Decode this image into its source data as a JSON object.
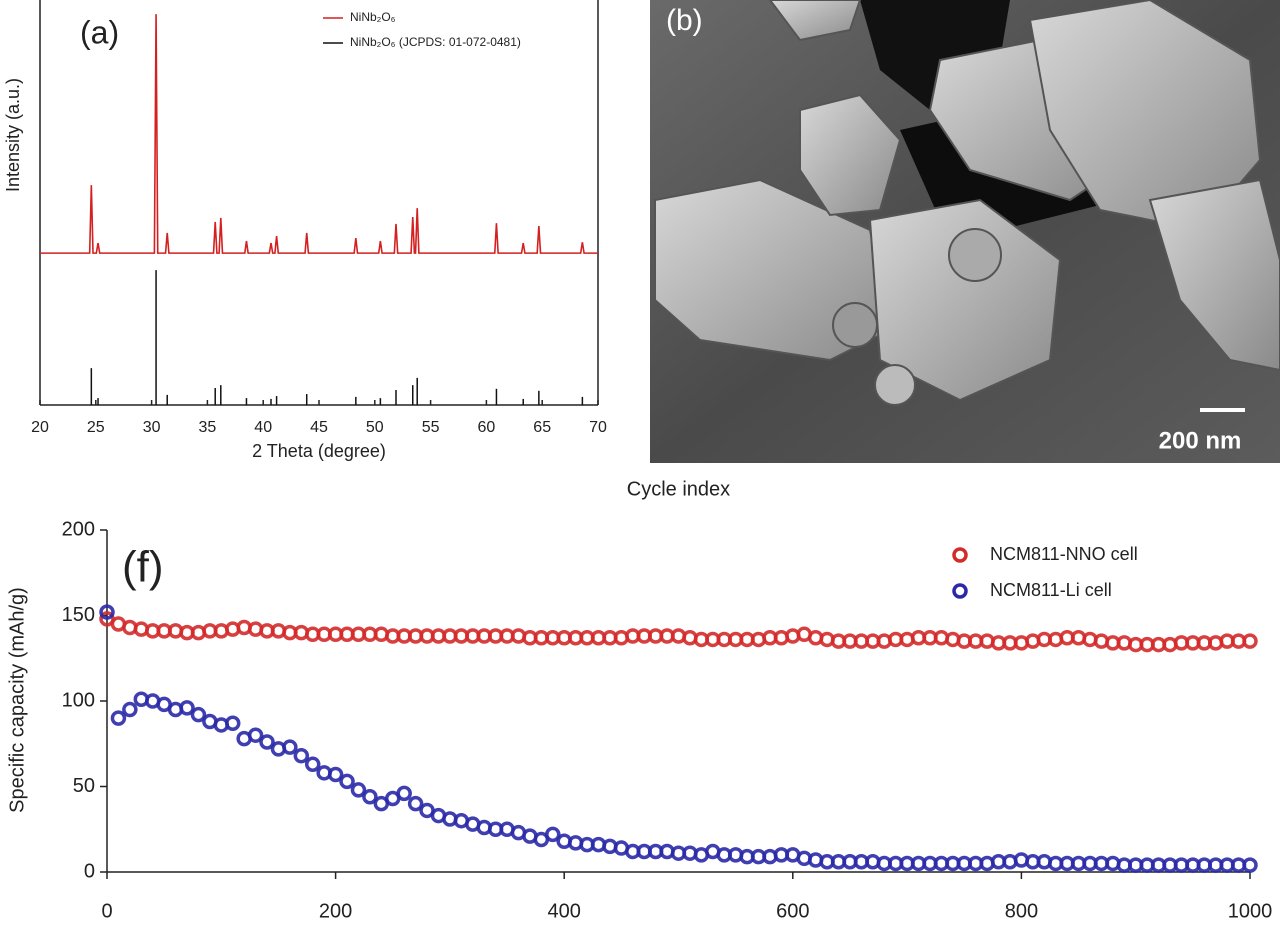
{
  "chart_data": [
    {
      "type": "line",
      "label": "(a)",
      "xlabel": "2 Theta (degree)",
      "ylabel": "Intensity (a.u.)",
      "xlim": [
        20,
        70
      ],
      "xticks": [
        20,
        25,
        30,
        35,
        40,
        45,
        50,
        55,
        60,
        65,
        70
      ],
      "ylim": [
        0,
        100
      ],
      "legend": "upper right",
      "series": [
        {
          "name": "NiNb₂O₆",
          "color": "#d42020",
          "style": "line",
          "x": [
            20,
            24.45,
            24.6,
            24.75,
            25.05,
            25.2,
            25.35,
            30.25,
            30.4,
            30.55,
            31.25,
            31.4,
            31.55,
            35.55,
            35.7,
            35.85,
            36.05,
            36.2,
            36.35,
            38.35,
            38.5,
            38.65,
            40.55,
            40.7,
            40.85,
            41.05,
            41.2,
            41.35,
            43.75,
            43.9,
            44.05,
            48.15,
            48.3,
            48.45,
            50.35,
            50.5,
            50.65,
            51.75,
            51.9,
            52.05,
            53.25,
            53.4,
            53.55,
            53.65,
            53.8,
            53.95,
            60.75,
            60.9,
            61.05,
            63.15,
            63.3,
            63.45,
            64.55,
            64.7,
            64.85,
            68.45,
            68.6,
            68.75,
            70
          ],
          "values": [
            37.5,
            37.5,
            54.3,
            37.5,
            37.5,
            40.0,
            37.5,
            37.5,
            96.5,
            37.5,
            37.5,
            42.5,
            37.5,
            37.5,
            45.2,
            37.5,
            37.5,
            46.2,
            37.5,
            37.5,
            40.5,
            37.5,
            37.5,
            40.0,
            37.5,
            37.5,
            41.7,
            37.5,
            37.5,
            42.5,
            37.5,
            37.5,
            41.2,
            37.5,
            37.5,
            40.5,
            37.5,
            37.5,
            44.7,
            37.5,
            37.5,
            46.4,
            37.5,
            37.5,
            48.6,
            37.5,
            37.5,
            44.9,
            37.5,
            37.5,
            40.0,
            37.5,
            37.5,
            44.2,
            37.5,
            37.5,
            40.2,
            37.5,
            37.5
          ]
        },
        {
          "name": "NiNb₂O₆ (JCPDS: 01-072-0481)",
          "color": "#111111",
          "style": "stick",
          "x": [
            24.6,
            25.2,
            30.4,
            31.4,
            35.7,
            36.2,
            38.5,
            40.7,
            41.2,
            43.9,
            48.3,
            50.5,
            51.9,
            53.4,
            53.8,
            60.9,
            63.3,
            64.7,
            68.6
          ],
          "values": [
            9.1,
            1.7,
            33.3,
            2.5,
            4.2,
            4.9,
            1.7,
            1.5,
            2.2,
            2.7,
            2.0,
            1.7,
            3.7,
            4.9,
            6.7,
            4.0,
            1.5,
            3.5,
            2.0
          ]
        }
      ]
    },
    {
      "type": "scatter",
      "label": "(f)",
      "xlabel": "Cycle index",
      "ylabel": "Specific capacity (mAh/g)",
      "xlim": [
        0,
        1000
      ],
      "xticks": [
        0,
        200,
        400,
        600,
        800,
        1000
      ],
      "ylim": [
        0,
        200
      ],
      "yticks": [
        0,
        50,
        100,
        150,
        200
      ],
      "legend": "upper right",
      "x": [
        0,
        10,
        20,
        30,
        40,
        50,
        60,
        70,
        80,
        90,
        100,
        110,
        120,
        130,
        140,
        150,
        160,
        170,
        180,
        190,
        200,
        210,
        220,
        230,
        240,
        250,
        260,
        270,
        280,
        290,
        300,
        310,
        320,
        330,
        340,
        350,
        360,
        370,
        380,
        390,
        400,
        410,
        420,
        430,
        440,
        450,
        460,
        470,
        480,
        490,
        500,
        510,
        520,
        530,
        540,
        550,
        560,
        570,
        580,
        590,
        600,
        610,
        620,
        630,
        640,
        650,
        660,
        670,
        680,
        690,
        700,
        710,
        720,
        730,
        740,
        750,
        760,
        770,
        780,
        790,
        800,
        810,
        820,
        830,
        840,
        850,
        860,
        870,
        880,
        890,
        900,
        910,
        920,
        930,
        940,
        950,
        960,
        970,
        980,
        990,
        1000
      ],
      "series": [
        {
          "name": "NCM811-NNO cell",
          "color": "#d42a2a",
          "values": [
            148,
            145,
            143,
            142,
            141,
            141,
            141,
            140,
            140,
            141,
            141,
            142,
            143,
            142,
            141,
            141,
            140,
            140,
            139,
            139,
            139,
            139,
            139,
            139,
            139,
            138,
            138,
            138,
            138,
            138,
            138,
            138,
            138,
            138,
            138,
            138,
            138,
            137,
            137,
            137,
            137,
            137,
            137,
            137,
            137,
            137,
            138,
            138,
            138,
            138,
            138,
            137,
            136,
            136,
            136,
            136,
            136,
            136,
            137,
            137,
            138,
            139,
            137,
            136,
            135,
            135,
            135,
            135,
            135,
            136,
            136,
            137,
            137,
            137,
            136,
            135,
            135,
            135,
            134,
            134,
            134,
            135,
            136,
            136,
            137,
            137,
            136,
            135,
            134,
            134,
            133,
            133,
            133,
            133,
            134,
            134,
            134,
            134,
            135,
            135,
            135
          ]
        },
        {
          "name": "NCM811-Li cell",
          "color": "#2a2aa8",
          "values": [
            152,
            90,
            95,
            101,
            100,
            98,
            95,
            96,
            92,
            88,
            86,
            87,
            78,
            80,
            76,
            72,
            73,
            68,
            63,
            58,
            57,
            53,
            48,
            44,
            40,
            43,
            46,
            40,
            36,
            33,
            31,
            30,
            28,
            26,
            25,
            25,
            23,
            21,
            19,
            22,
            18,
            17,
            16,
            16,
            15,
            14,
            12,
            12,
            12,
            12,
            11,
            11,
            10,
            12,
            10,
            10,
            9,
            9,
            9,
            10,
            10,
            8,
            7,
            6,
            6,
            6,
            6,
            6,
            5,
            5,
            5,
            5,
            5,
            5,
            5,
            5,
            5,
            5,
            6,
            6,
            7,
            6,
            6,
            5,
            5,
            5,
            5,
            5,
            5,
            4,
            4,
            4,
            4,
            4,
            4,
            4,
            4,
            4,
            4,
            4,
            4
          ]
        }
      ]
    }
  ],
  "sem_image": {
    "label": "(b)",
    "scale_bar": "200 nm"
  }
}
